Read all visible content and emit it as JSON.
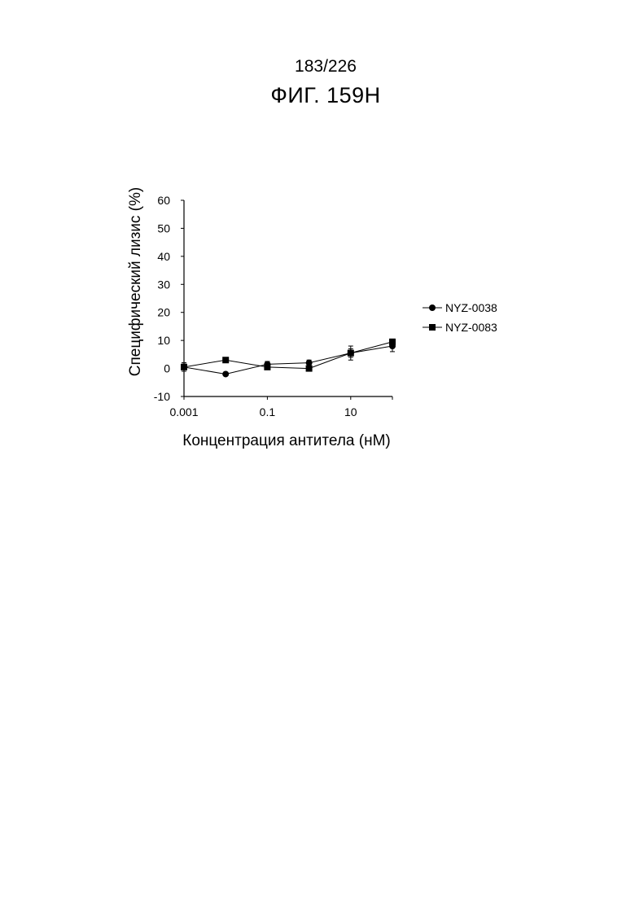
{
  "header": {
    "page_number": "183/226",
    "figure_title": "ФИГ. 159H"
  },
  "chart_data": {
    "type": "scatter",
    "xlabel": "Концентрация антитела (нМ)",
    "ylabel": "Специфический лизис (%)",
    "xscale": "log",
    "xlim": [
      0.001,
      100
    ],
    "ylim": [
      -10,
      60
    ],
    "yticks": [
      -10,
      0,
      10,
      20,
      30,
      40,
      50,
      60
    ],
    "ytick_labels": [
      "-10",
      "0",
      "10",
      "20",
      "30",
      "40",
      "50",
      "60"
    ],
    "xticks": [
      0.001,
      0.1,
      10
    ],
    "xtick_labels": [
      "0.001",
      "0.1",
      "10"
    ],
    "grid": false,
    "legend_position": "right",
    "lines_connected": true,
    "series": [
      {
        "name": "NYZ-0038",
        "marker": "circle",
        "color": "#000000",
        "x": [
          0.001,
          0.01,
          0.1,
          1,
          10,
          100
        ],
        "y": [
          0.5,
          -2.0,
          1.5,
          2.0,
          5.5,
          8.0
        ],
        "error": [
          1.5,
          0.5,
          1.0,
          1.0,
          2.5,
          2.0
        ]
      },
      {
        "name": "NYZ-0083",
        "marker": "square",
        "color": "#000000",
        "x": [
          0.001,
          0.01,
          0.1,
          1,
          10,
          100
        ],
        "y": [
          0.5,
          3.0,
          0.5,
          0.0,
          5.5,
          9.5
        ],
        "error": [
          1.5,
          0.5,
          0.5,
          0.5,
          1.5,
          1.0
        ]
      }
    ]
  }
}
